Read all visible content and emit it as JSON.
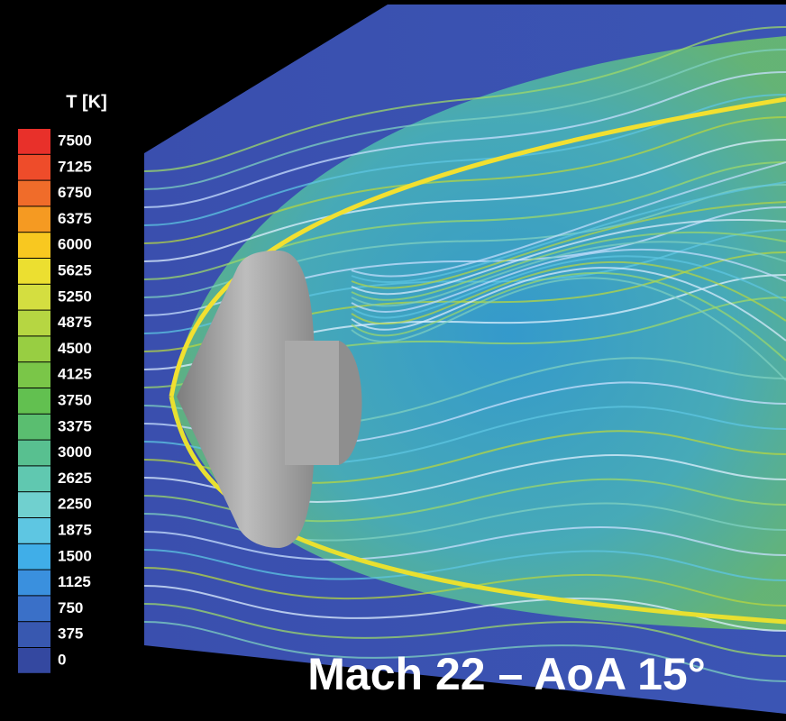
{
  "colorbar": {
    "title": "T [K]",
    "ticks": [
      7500,
      7125,
      6750,
      6375,
      6000,
      5625,
      5250,
      4875,
      4500,
      4125,
      3750,
      3375,
      3000,
      2625,
      2250,
      1875,
      1500,
      1125,
      750,
      375,
      0
    ],
    "colors": [
      "#e8302a",
      "#ee4c2a",
      "#f06c2a",
      "#f59a22",
      "#f8c820",
      "#ecdf30",
      "#d4de40",
      "#b6d642",
      "#98ce42",
      "#7ac648",
      "#62c050",
      "#5abe70",
      "#58c090",
      "#60c8b0",
      "#70d0cf",
      "#5ec6e2",
      "#40aee8",
      "#3a90de",
      "#3a70c8",
      "#3858b0",
      "#3448a0"
    ]
  },
  "caption": "Mach 22 – AoA 15°"
}
